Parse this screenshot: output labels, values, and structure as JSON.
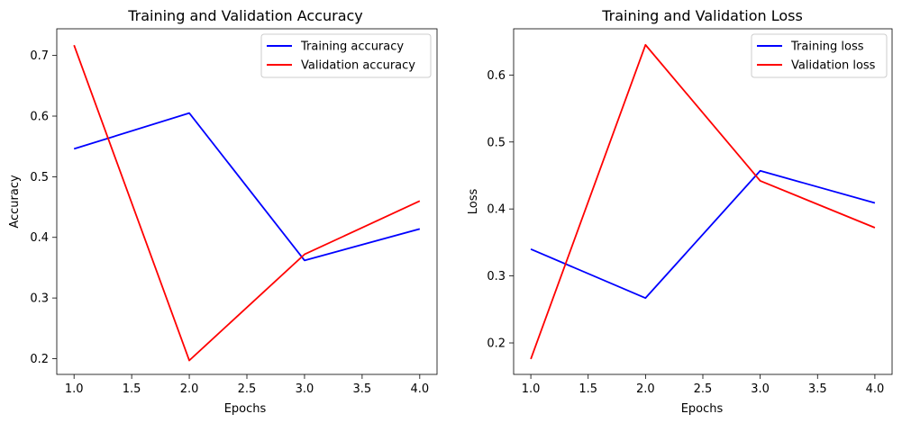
{
  "chart_data": [
    {
      "type": "line",
      "title": "Training and Validation Accuracy",
      "xlabel": "Epochs",
      "ylabel": "Accuracy",
      "xlim": [
        0.85,
        4.15
      ],
      "ylim": [
        0.174,
        0.744
      ],
      "xticks": [
        "1.0",
        "1.5",
        "2.0",
        "2.5",
        "3.0",
        "3.5",
        "4.0"
      ],
      "yticks": [
        "0.2",
        "0.3",
        "0.4",
        "0.5",
        "0.6",
        "0.7"
      ],
      "legend": "upper-right",
      "grid": false,
      "x": [
        1,
        2,
        3,
        4
      ],
      "series": [
        {
          "name": "Training accuracy",
          "color": "#0000ff",
          "values": [
            0.546,
            0.605,
            0.362,
            0.414
          ]
        },
        {
          "name": "Validation accuracy",
          "color": "#ff0000",
          "values": [
            0.717,
            0.197,
            0.372,
            0.46
          ]
        }
      ]
    },
    {
      "type": "line",
      "title": "Training and Validation Loss",
      "xlabel": "Epochs",
      "ylabel": "Loss",
      "xlim": [
        0.85,
        4.15
      ],
      "ylim": [
        0.153,
        0.669
      ],
      "xticks": [
        "1.0",
        "1.5",
        "2.0",
        "2.5",
        "3.0",
        "3.5",
        "4.0"
      ],
      "yticks": [
        "0.2",
        "0.3",
        "0.4",
        "0.5",
        "0.6"
      ],
      "legend": "upper-right",
      "grid": false,
      "x": [
        1,
        2,
        3,
        4
      ],
      "series": [
        {
          "name": "Training loss",
          "color": "#0000ff",
          "values": [
            0.34,
            0.267,
            0.457,
            0.409
          ]
        },
        {
          "name": "Validation loss",
          "color": "#ff0000",
          "values": [
            0.176,
            0.645,
            0.442,
            0.372
          ]
        }
      ]
    }
  ]
}
